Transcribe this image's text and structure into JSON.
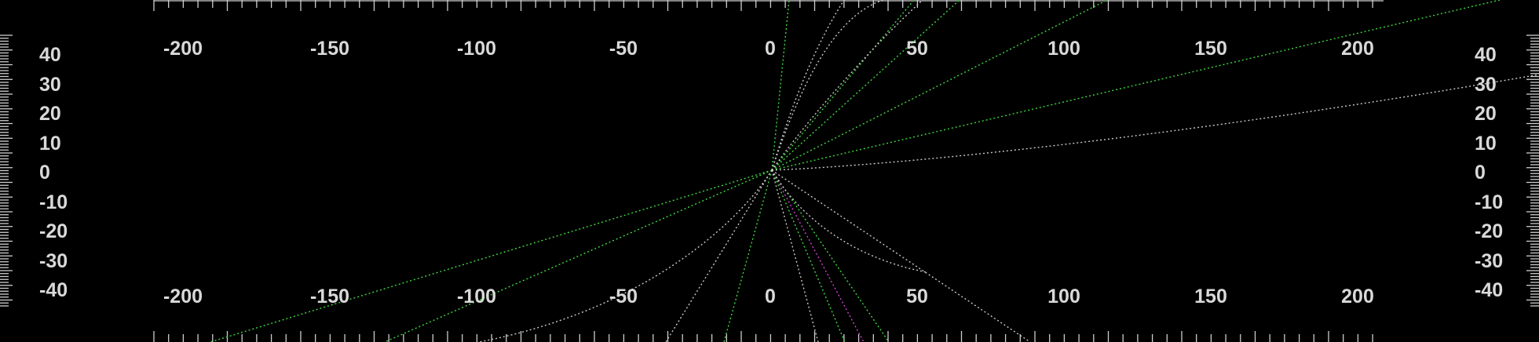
{
  "scope": {
    "background": "#000000",
    "label_color": "#d9d9d9",
    "tick_color": "#cfcfcf",
    "x_axis_labels": [
      "-200",
      "-150",
      "-100",
      "-50",
      "0",
      "50",
      "100",
      "150",
      "200"
    ],
    "y_axis_labels": [
      "40",
      "30",
      "20",
      "10",
      "0",
      "-10",
      "-20",
      "-30",
      "-40"
    ],
    "trace_colors": {
      "green": "#3fd83f",
      "white": "#c8c8c8",
      "magenta": "#d040d0"
    }
  }
}
